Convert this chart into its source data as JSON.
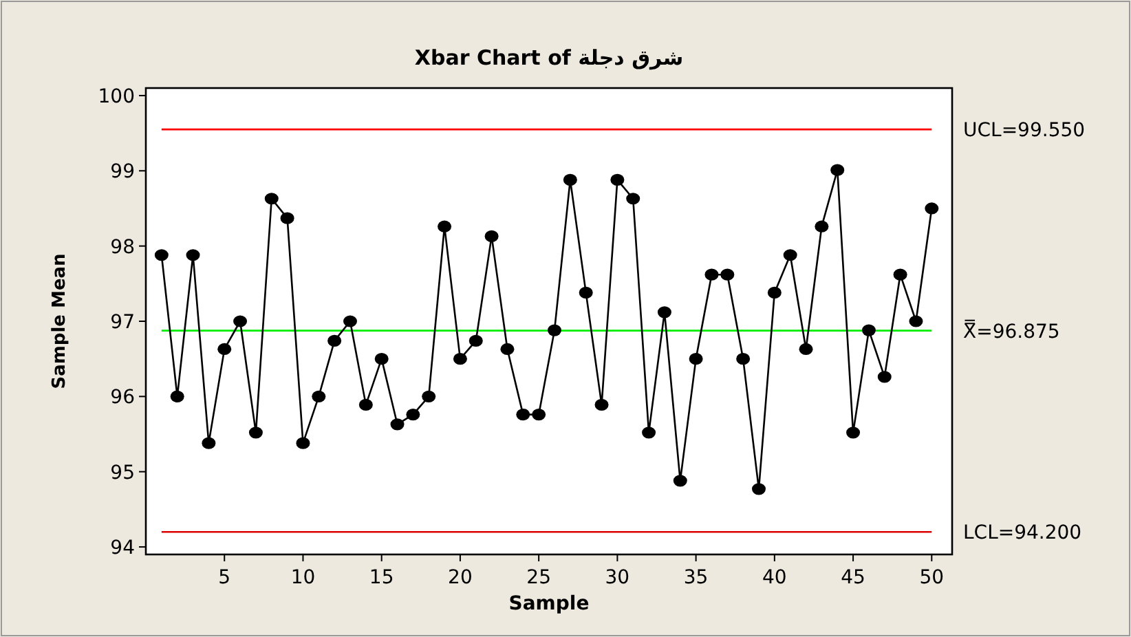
{
  "chart_data": {
    "type": "line",
    "title": "Xbar Chart of شرق دجلة",
    "xlabel": "Sample",
    "ylabel": "Sample Mean",
    "x": [
      1,
      2,
      3,
      4,
      5,
      6,
      7,
      8,
      9,
      10,
      11,
      12,
      13,
      14,
      15,
      16,
      17,
      18,
      19,
      20,
      21,
      22,
      23,
      24,
      25,
      26,
      27,
      28,
      29,
      30,
      31,
      32,
      33,
      34,
      35,
      36,
      37,
      38,
      39,
      40,
      41,
      42,
      43,
      44,
      45,
      46,
      47,
      48,
      49,
      50
    ],
    "series": [
      {
        "color": "#000000",
        "values": [
          97.88,
          96.0,
          97.88,
          95.38,
          96.63,
          97.0,
          95.52,
          98.63,
          98.37,
          95.38,
          96.0,
          96.74,
          97.0,
          95.89,
          96.5,
          95.63,
          95.76,
          96.0,
          98.26,
          96.5,
          96.74,
          98.13,
          96.63,
          95.76,
          95.76,
          96.88,
          98.88,
          97.38,
          95.89,
          98.88,
          98.63,
          95.52,
          97.12,
          94.88,
          96.5,
          97.62,
          97.62,
          96.5,
          94.77,
          97.38,
          97.88,
          96.63,
          98.26,
          99.01,
          95.52,
          96.88,
          96.26,
          97.62,
          97.0,
          98.5
        ]
      }
    ],
    "xlim": [
      0,
      51.3
    ],
    "ylim": [
      93.9,
      100.1
    ],
    "xticks": [
      5,
      10,
      15,
      20,
      25,
      30,
      35,
      40,
      45,
      50
    ],
    "yticks": [
      94,
      95,
      96,
      97,
      98,
      99,
      100
    ],
    "marker": "circle",
    "line_style": "solid",
    "ref_lines": [
      {
        "axis": "y",
        "value": 99.55,
        "label": "UCL=99.550",
        "color": "#ff0000"
      },
      {
        "axis": "y",
        "value": 96.875,
        "label": "X̿=96.875",
        "color": "#00ee00"
      },
      {
        "axis": "y",
        "value": 94.2,
        "label": "LCL=94.200",
        "color": "#dd0000"
      }
    ]
  }
}
